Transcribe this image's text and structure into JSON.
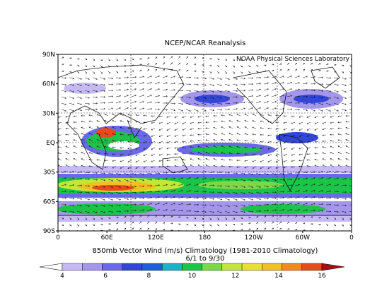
{
  "header": {
    "title": "NCEP/NCAR Reanalysis",
    "credit": "NOAA Physical Sciences Laboratory"
  },
  "map": {
    "lat_labels": [
      "90N",
      "60N",
      "30N",
      "EQ",
      "30S",
      "60S",
      "90S"
    ],
    "lon_labels": [
      "0",
      "60E",
      "120E",
      "180",
      "120W",
      "60W",
      "0"
    ]
  },
  "caption": {
    "line1": "850mb Vector Wind (m/s) Climatology (1981-2010 Climatology)",
    "line2": "6/1  to 9/30"
  },
  "colorbar": {
    "labels": [
      4,
      6,
      8,
      10,
      12,
      14,
      16
    ],
    "colors": [
      "#ffffff",
      "#c6baf2",
      "#a496ea",
      "#6a6ae8",
      "#3246d8",
      "#1e5fd6",
      "#1fb0c8",
      "#1dc449",
      "#7bd84a",
      "#c4e63a",
      "#e8e030",
      "#f0c020",
      "#f08a20",
      "#e84a1e",
      "#a81010"
    ]
  }
}
